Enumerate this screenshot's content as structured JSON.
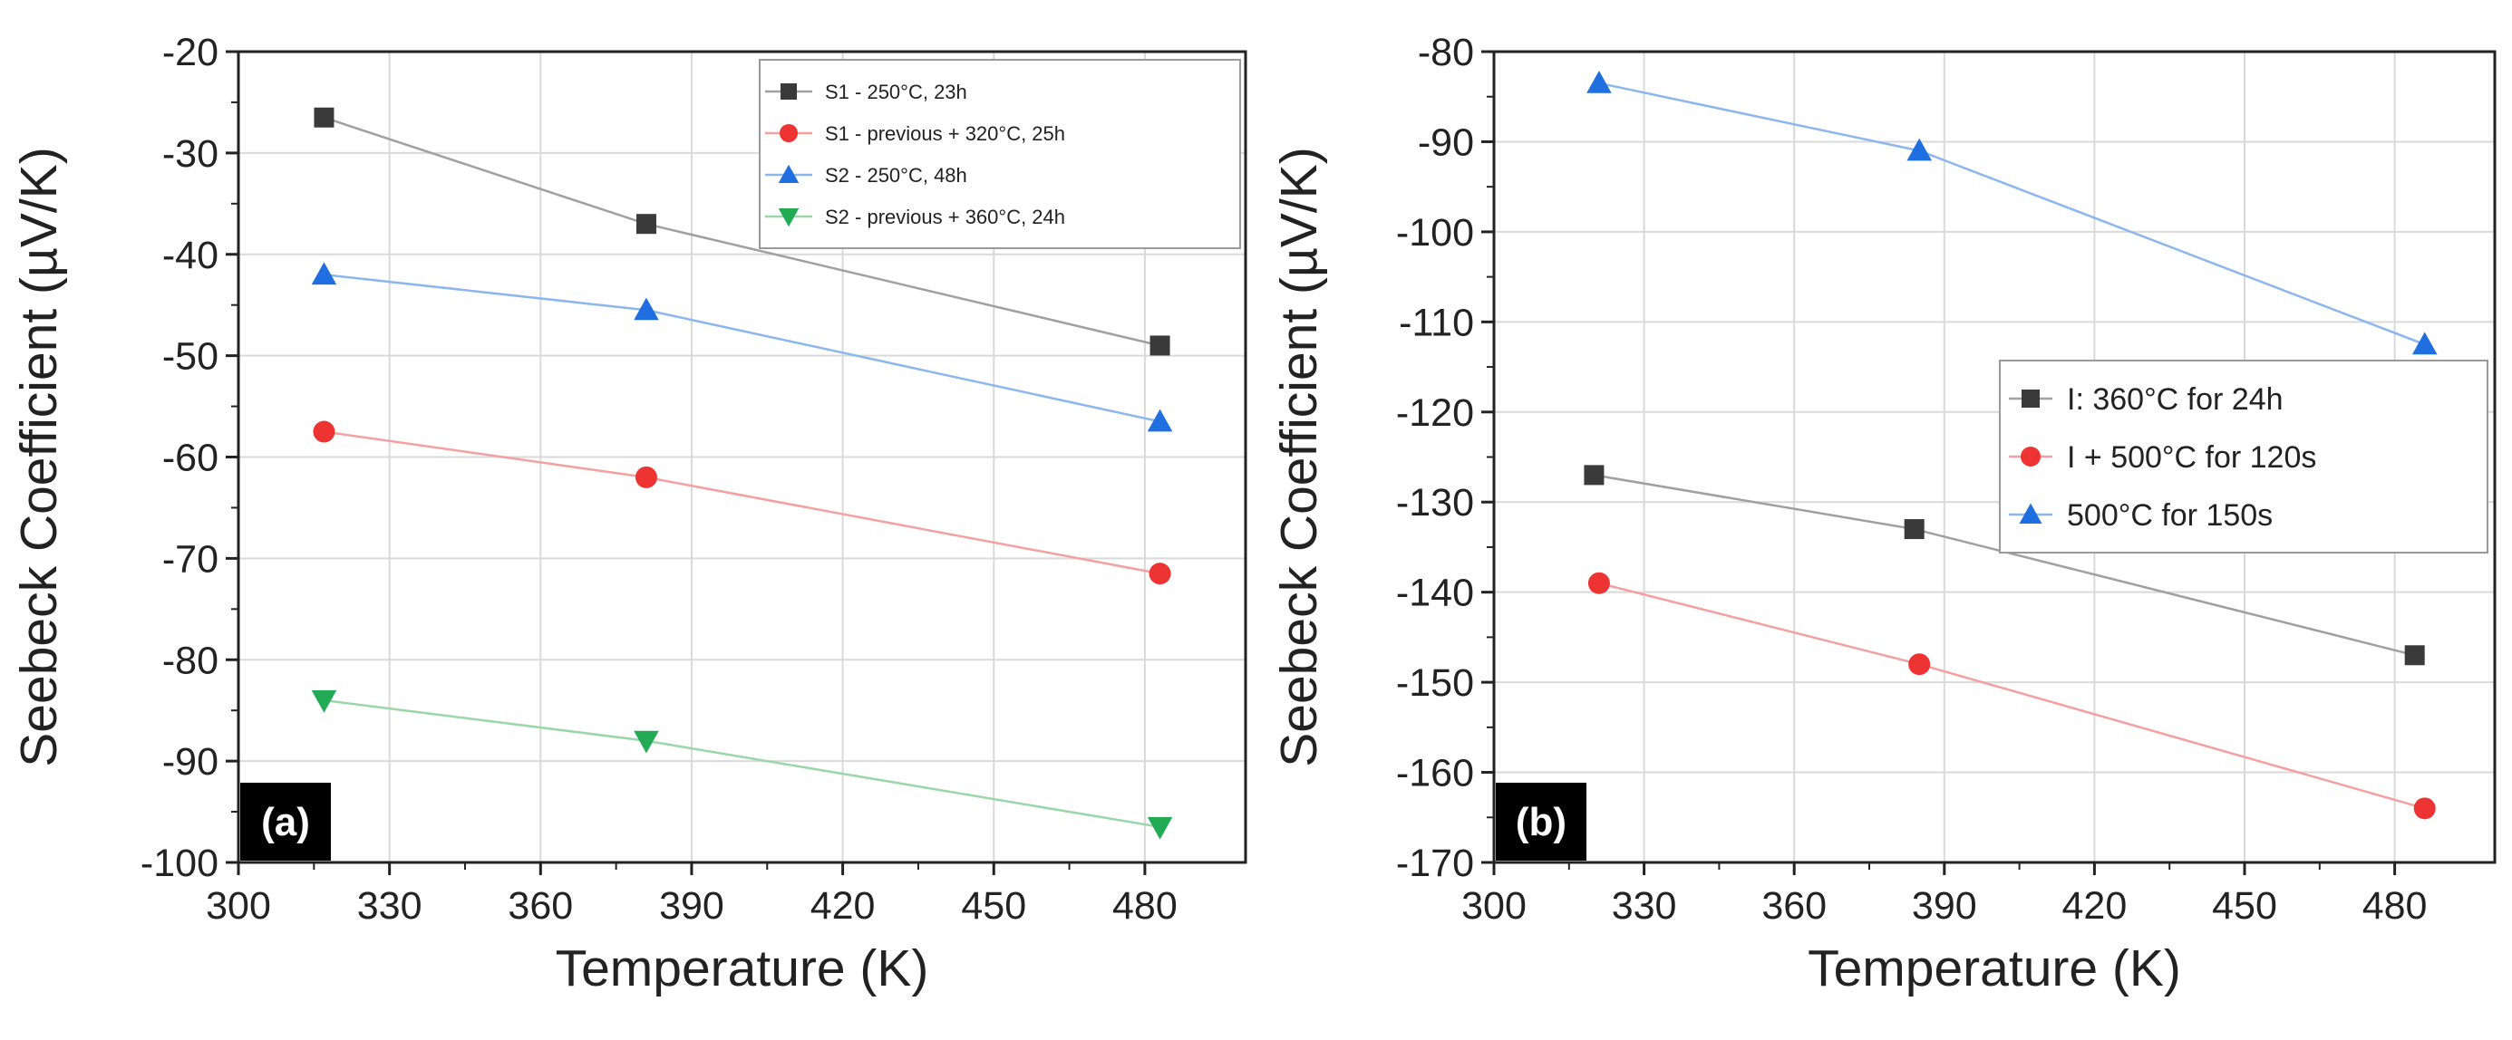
{
  "chart_data": [
    {
      "type": "line",
      "panel_label": "(a)",
      "xlabel": "Temperature (K)",
      "ylabel": "Seebeck Coefficient (µV/K)",
      "xlim": [
        300,
        500
      ],
      "ylim": [
        -100,
        -20
      ],
      "xticks": [
        300,
        330,
        360,
        390,
        420,
        450,
        480
      ],
      "yticks": [
        -20,
        -30,
        -40,
        -50,
        -60,
        -70,
        -80,
        -90,
        -100
      ],
      "legend_position": "top-right",
      "series": [
        {
          "name": "S1 - 250°C, 23h",
          "marker": "square",
          "color": "#3a3a3a",
          "line_color": "#a0a0a0",
          "x": [
            317,
            381,
            483
          ],
          "y": [
            -26.5,
            -37,
            -49
          ]
        },
        {
          "name": "S1 - previous + 320°C, 25h",
          "marker": "circle",
          "color": "#ee3333",
          "line_color": "#f5a0a0",
          "x": [
            317,
            381,
            483
          ],
          "y": [
            -57.5,
            -62,
            -71.5
          ]
        },
        {
          "name": "S2 - 250°C, 48h",
          "marker": "triangle-up",
          "color": "#1f6fe0",
          "line_color": "#8cb6ee",
          "x": [
            317,
            381,
            483
          ],
          "y": [
            -42,
            -45.5,
            -56.5
          ]
        },
        {
          "name": "S2 - previous + 360°C, 24h",
          "marker": "triangle-down",
          "color": "#22aa55",
          "line_color": "#9ad6a8",
          "x": [
            317,
            381,
            483
          ],
          "y": [
            -84,
            -88,
            -96.5
          ]
        }
      ]
    },
    {
      "type": "line",
      "panel_label": "(b)",
      "xlabel": "Temperature (K)",
      "ylabel": "Seebeck Coefficient (µV/K)",
      "xlim": [
        300,
        500
      ],
      "ylim": [
        -170,
        -80
      ],
      "xticks": [
        300,
        330,
        360,
        390,
        420,
        450,
        480
      ],
      "yticks": [
        -80,
        -90,
        -100,
        -110,
        -120,
        -130,
        -140,
        -150,
        -160,
        -170
      ],
      "legend_position": "center-right",
      "series": [
        {
          "name": "I: 360°C for 24h",
          "marker": "square",
          "color": "#3a3a3a",
          "line_color": "#a0a0a0",
          "x": [
            320,
            384,
            484
          ],
          "y": [
            -127,
            -133,
            -147
          ]
        },
        {
          "name": "I + 500°C for 120s",
          "marker": "circle",
          "color": "#ee3333",
          "line_color": "#f5a0a0",
          "x": [
            321,
            385,
            486
          ],
          "y": [
            -139,
            -148,
            -164
          ]
        },
        {
          "name": "500°C for 150s",
          "marker": "triangle-up",
          "color": "#1f6fe0",
          "line_color": "#8cb6ee",
          "x": [
            321,
            385,
            486
          ],
          "y": [
            -83.5,
            -91,
            -112.5
          ]
        }
      ]
    }
  ]
}
